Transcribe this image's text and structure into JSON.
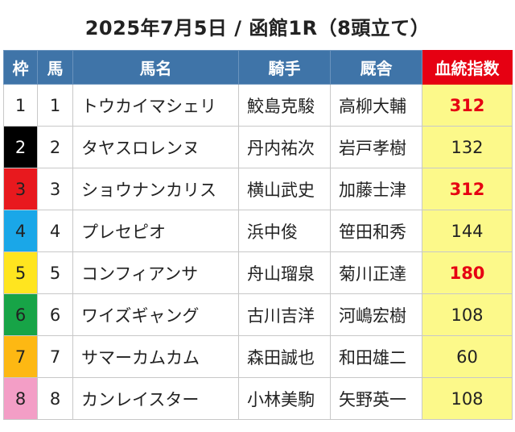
{
  "title": "2025年7月5日 / 函館1R（8頭立て）",
  "headers": {
    "waku": "枠",
    "uma": "馬",
    "name": "馬名",
    "jockey": "騎手",
    "trainer": "厩舎",
    "score": "血統指数"
  },
  "colors": {
    "header_bg": "#3f74a8",
    "score_header_bg": "#e60012",
    "score_bg": "#fcf98a",
    "high_score_text": "#e60012"
  },
  "rows": [
    {
      "waku": "1",
      "uma": "1",
      "name": "トウカイマシェリ",
      "jockey": "鮫島克駿",
      "trainer": "高柳大輔",
      "score": "312",
      "high": true,
      "waku_bg": "#ffffff",
      "waku_fg": "#222222"
    },
    {
      "waku": "2",
      "uma": "2",
      "name": "タヤスロレンヌ",
      "jockey": "丹内祐次",
      "trainer": "岩戸孝樹",
      "score": "132",
      "high": false,
      "waku_bg": "#000000",
      "waku_fg": "#ffffff"
    },
    {
      "waku": "3",
      "uma": "3",
      "name": "ショウナンカリス",
      "jockey": "横山武史",
      "trainer": "加藤士津",
      "score": "312",
      "high": true,
      "waku_bg": "#e8191e",
      "waku_fg": "#222222"
    },
    {
      "waku": "4",
      "uma": "4",
      "name": "プレセピオ",
      "jockey": "浜中俊",
      "trainer": "笹田和秀",
      "score": "144",
      "high": false,
      "waku_bg": "#1aa7e8",
      "waku_fg": "#222222"
    },
    {
      "waku": "5",
      "uma": "5",
      "name": "コンフィアンサ",
      "jockey": "舟山瑠泉",
      "trainer": "菊川正達",
      "score": "180",
      "high": true,
      "waku_bg": "#ffe51f",
      "waku_fg": "#222222"
    },
    {
      "waku": "6",
      "uma": "6",
      "name": "ワイズギャング",
      "jockey": "古川吉洋",
      "trainer": "河嶋宏樹",
      "score": "108",
      "high": false,
      "waku_bg": "#17a447",
      "waku_fg": "#222222"
    },
    {
      "waku": "7",
      "uma": "7",
      "name": "サマーカムカム",
      "jockey": "森田誠也",
      "trainer": "和田雄二",
      "score": "60",
      "high": false,
      "waku_bg": "#fdb813",
      "waku_fg": "#222222"
    },
    {
      "waku": "8",
      "uma": "8",
      "name": "カンレイスター",
      "jockey": "小林美駒",
      "trainer": "矢野英一",
      "score": "108",
      "high": false,
      "waku_bg": "#f39ec6",
      "waku_fg": "#222222"
    }
  ]
}
